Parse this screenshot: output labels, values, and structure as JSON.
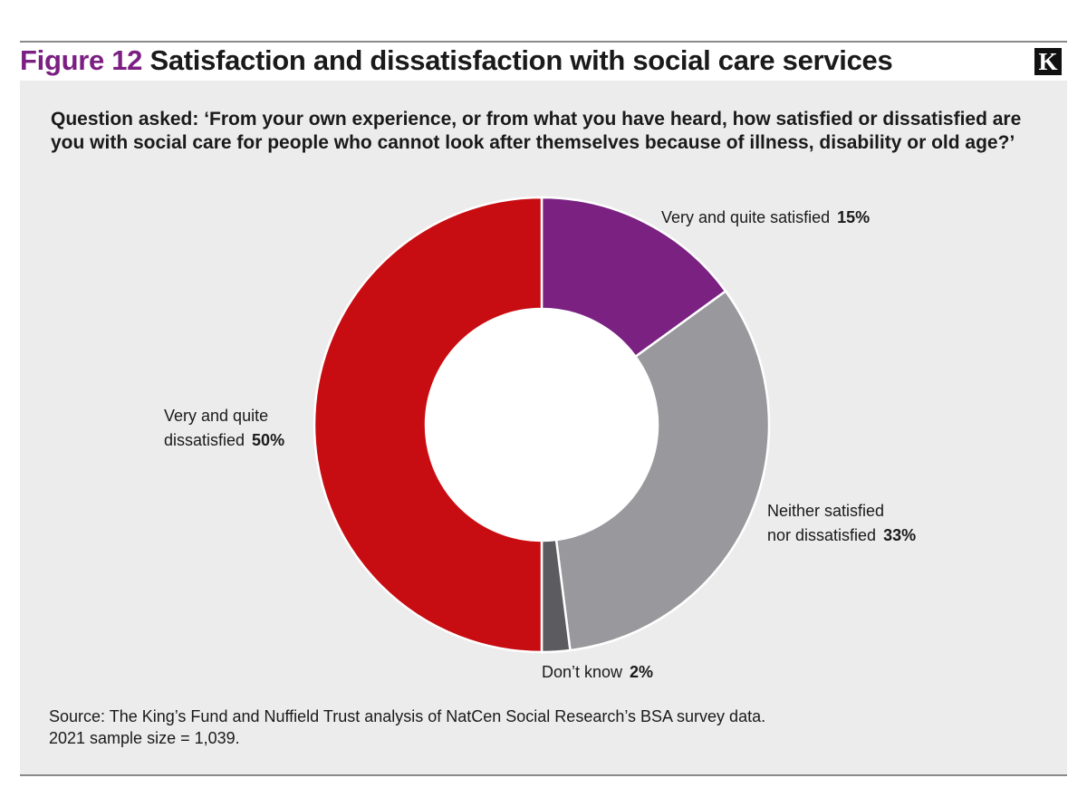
{
  "figure": {
    "number": "Figure 12",
    "title": "Satisfaction and dissatisfaction with social care services",
    "logo_letter": "K"
  },
  "question": "Question asked: ‘From your own experience, or from what you have heard, how satisfied or dissatisfied are you with social care for people who cannot look after themselves because of illness, disability or old age?’",
  "source": {
    "line1": "Source: The King’s Fund and Nuffield Trust analysis of NatCen Social Research’s BSA survey data.",
    "line2": "2021 sample size = 1,039."
  },
  "chart_data": {
    "type": "pie",
    "donut": true,
    "start_angle_deg": 0,
    "direction": "clockwise",
    "slices": [
      {
        "label_lines": [
          "Very and quite satisfied"
        ],
        "value": 15,
        "value_text": "15%",
        "color": "#7a2182"
      },
      {
        "label_lines": [
          "Neither satisfied",
          "nor dissatisfied"
        ],
        "value": 33,
        "value_text": "33%",
        "color": "#99999d"
      },
      {
        "label_lines": [
          "Don’t know"
        ],
        "value": 2,
        "value_text": "2%",
        "color": "#5c5c60"
      },
      {
        "label_lines": [
          "Very and quite",
          "dissatisfied"
        ],
        "value": 50,
        "value_text": "50%",
        "color": "#c80d12"
      }
    ]
  },
  "colors": {
    "title_accent": "#7b1f82",
    "panel_background": "#ececec",
    "rule": "#8a8a8a"
  }
}
